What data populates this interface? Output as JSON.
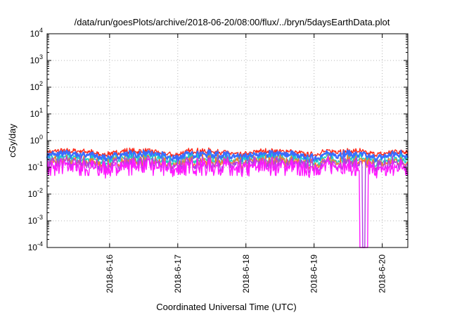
{
  "chart_data": {
    "type": "line",
    "title": "/data/run/goesPlots/archive/2018-06-20/08:00/flux/../bryn/5daysEarthData.plot",
    "xlabel": "Coordinated Universal Time (UTC)",
    "ylabel": "cGy/day",
    "yscale": "log",
    "ylim": [
      0.0001,
      10000
    ],
    "xlim": [
      "2018-06-15 02:00",
      "2018-06-20 09:00"
    ],
    "grid": true,
    "x_ticks": [
      "2018-6-16",
      "2018-6-17",
      "2018-6-18",
      "2018-6-19",
      "2018-6-20"
    ],
    "y_ticks": [
      {
        "base": "10",
        "exp": "-4"
      },
      {
        "base": "10",
        "exp": "-3"
      },
      {
        "base": "10",
        "exp": "-2"
      },
      {
        "base": "10",
        "exp": "-1"
      },
      {
        "base": "10",
        "exp": "0"
      },
      {
        "base": "10",
        "exp": "1"
      },
      {
        "base": "10",
        "exp": "2"
      },
      {
        "base": "10",
        "exp": "3"
      },
      {
        "base": "10",
        "exp": "4"
      }
    ],
    "series": [
      {
        "color": "#ff2a1a",
        "level": 0.4,
        "values_note": ""
      },
      {
        "color": "#3b6cff",
        "level": 0.3
      },
      {
        "color": "#1ad1c8",
        "level": 0.21
      },
      {
        "color": "#ff7a2a",
        "level": 0.17
      },
      {
        "color": "#b040e0",
        "level": 0.145
      },
      {
        "color": "#ff1aff",
        "level": 0.11
      }
    ],
    "dropout": {
      "start": "2018-06-19 16:00",
      "end": "2018-06-19 19:00",
      "value": 0.0001
    }
  }
}
